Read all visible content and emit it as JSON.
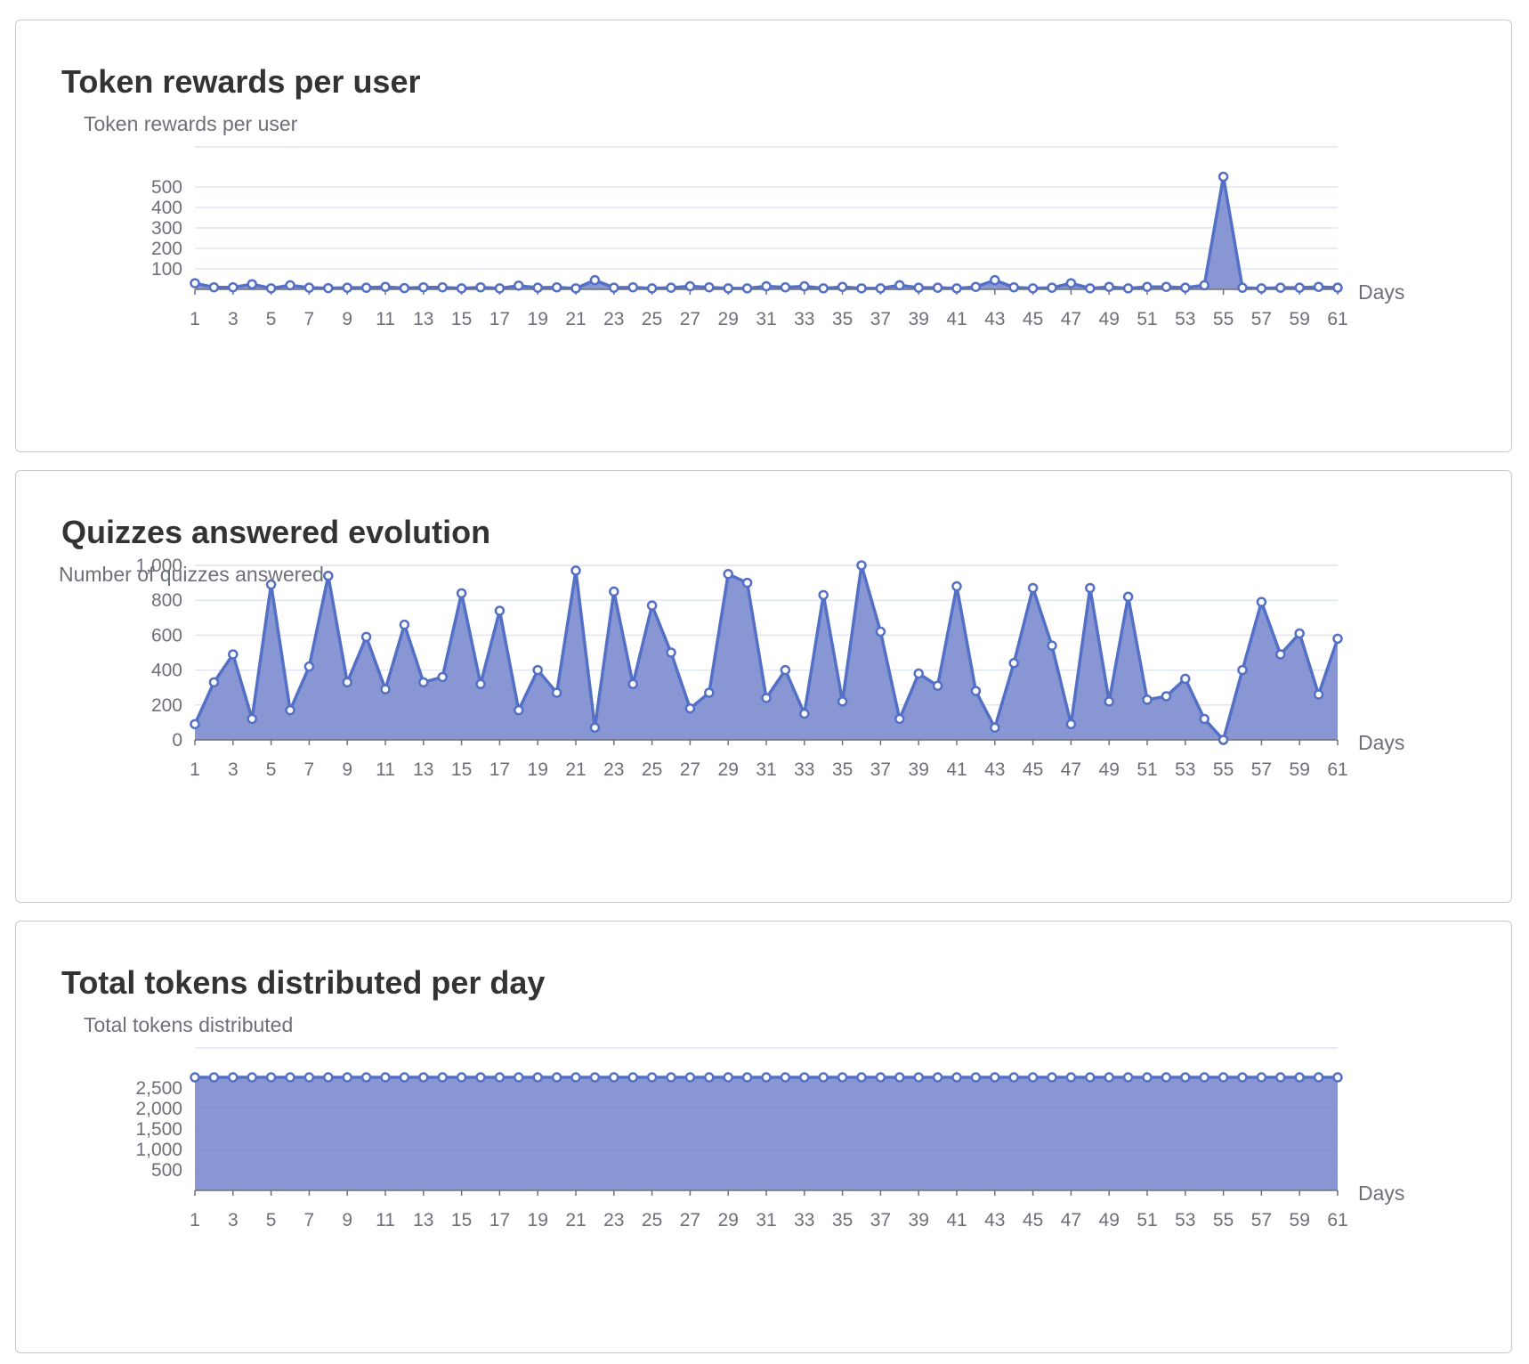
{
  "colors": {
    "line": "#5470c6",
    "area": "#7385cc",
    "grid": "#e0e6f1",
    "axis": "#6e7079",
    "title": "#333333"
  },
  "cards": [
    {
      "title": "Token rewards per user"
    },
    {
      "title": "Quizzes answered evolution"
    },
    {
      "title": "Total tokens distributed per day"
    }
  ],
  "chart_data": [
    {
      "type": "area",
      "ylabel": "Token rewards per user",
      "xlabel": "Days",
      "grid": true,
      "x": [
        1,
        2,
        3,
        4,
        5,
        6,
        7,
        8,
        9,
        10,
        11,
        12,
        13,
        14,
        15,
        16,
        17,
        18,
        19,
        20,
        21,
        22,
        23,
        24,
        25,
        26,
        27,
        28,
        29,
        30,
        31,
        32,
        33,
        34,
        35,
        36,
        37,
        38,
        39,
        40,
        41,
        42,
        43,
        44,
        45,
        46,
        47,
        48,
        49,
        50,
        51,
        52,
        53,
        54,
        55,
        56,
        57,
        58,
        59,
        60,
        61
      ],
      "x_tick_labels": [
        "1",
        "3",
        "5",
        "7",
        "9",
        "11",
        "13",
        "15",
        "17",
        "19",
        "21",
        "23",
        "25",
        "27",
        "29",
        "31",
        "33",
        "35",
        "37",
        "39",
        "41",
        "43",
        "45",
        "47",
        "49",
        "51",
        "53",
        "55",
        "57",
        "59",
        "61"
      ],
      "y_tick_labels": [
        "100",
        "200",
        "300",
        "400",
        "500"
      ],
      "ylim": [
        0,
        600
      ],
      "values": [
        30,
        10,
        10,
        25,
        5,
        20,
        8,
        6,
        8,
        8,
        12,
        6,
        10,
        10,
        5,
        10,
        5,
        18,
        8,
        10,
        5,
        45,
        8,
        10,
        5,
        8,
        15,
        10,
        5,
        5,
        15,
        10,
        15,
        5,
        12,
        5,
        5,
        20,
        8,
        8,
        5,
        12,
        45,
        10,
        5,
        8,
        30,
        5,
        12,
        5,
        12,
        12,
        8,
        20,
        550,
        8,
        5,
        8,
        8,
        12,
        8
      ]
    },
    {
      "type": "area",
      "ylabel": "Number of quizzes answered",
      "xlabel": "Days",
      "grid": true,
      "x": [
        1,
        2,
        3,
        4,
        5,
        6,
        7,
        8,
        9,
        10,
        11,
        12,
        13,
        14,
        15,
        16,
        17,
        18,
        19,
        20,
        21,
        22,
        23,
        24,
        25,
        26,
        27,
        28,
        29,
        30,
        31,
        32,
        33,
        34,
        35,
        36,
        37,
        38,
        39,
        40,
        41,
        42,
        43,
        44,
        45,
        46,
        47,
        48,
        49,
        50,
        51,
        52,
        53,
        54,
        55,
        56,
        57,
        58,
        59,
        60,
        61
      ],
      "x_tick_labels": [
        "1",
        "3",
        "5",
        "7",
        "9",
        "11",
        "13",
        "15",
        "17",
        "19",
        "21",
        "23",
        "25",
        "27",
        "29",
        "31",
        "33",
        "35",
        "37",
        "39",
        "41",
        "43",
        "45",
        "47",
        "49",
        "51",
        "53",
        "55",
        "57",
        "59",
        "61"
      ],
      "y_tick_labels": [
        "0",
        "200",
        "400",
        "600",
        "800",
        "1,000"
      ],
      "ylim": [
        0,
        1000
      ],
      "values": [
        90,
        330,
        490,
        120,
        890,
        170,
        420,
        940,
        330,
        590,
        290,
        660,
        330,
        360,
        840,
        320,
        740,
        170,
        400,
        270,
        970,
        70,
        850,
        320,
        770,
        500,
        180,
        270,
        950,
        900,
        240,
        400,
        150,
        830,
        220,
        1000,
        620,
        120,
        380,
        310,
        880,
        280,
        70,
        440,
        870,
        540,
        90,
        870,
        220,
        820,
        230,
        250,
        350,
        120,
        0,
        400,
        790,
        490,
        610,
        260,
        580
      ]
    },
    {
      "type": "area",
      "ylabel": "Total tokens distributed",
      "xlabel": "Days",
      "grid": true,
      "x": [
        1,
        2,
        3,
        4,
        5,
        6,
        7,
        8,
        9,
        10,
        11,
        12,
        13,
        14,
        15,
        16,
        17,
        18,
        19,
        20,
        21,
        22,
        23,
        24,
        25,
        26,
        27,
        28,
        29,
        30,
        31,
        32,
        33,
        34,
        35,
        36,
        37,
        38,
        39,
        40,
        41,
        42,
        43,
        44,
        45,
        46,
        47,
        48,
        49,
        50,
        51,
        52,
        53,
        54,
        55,
        56,
        57,
        58,
        59,
        60,
        61
      ],
      "x_tick_labels": [
        "1",
        "3",
        "5",
        "7",
        "9",
        "11",
        "13",
        "15",
        "17",
        "19",
        "21",
        "23",
        "25",
        "27",
        "29",
        "31",
        "33",
        "35",
        "37",
        "39",
        "41",
        "43",
        "45",
        "47",
        "49",
        "51",
        "53",
        "55",
        "57",
        "59",
        "61"
      ],
      "y_tick_labels": [
        "500",
        "1,000",
        "1,500",
        "2,000",
        "2,500"
      ],
      "ylim": [
        0,
        3000
      ],
      "values": [
        2760,
        2760,
        2760,
        2760,
        2760,
        2760,
        2760,
        2760,
        2760,
        2760,
        2760,
        2760,
        2760,
        2760,
        2760,
        2760,
        2760,
        2760,
        2760,
        2760,
        2760,
        2760,
        2760,
        2760,
        2760,
        2760,
        2760,
        2760,
        2760,
        2760,
        2760,
        2760,
        2760,
        2760,
        2760,
        2760,
        2760,
        2760,
        2760,
        2760,
        2760,
        2760,
        2760,
        2760,
        2760,
        2760,
        2760,
        2760,
        2760,
        2760,
        2760,
        2760,
        2760,
        2760,
        2760,
        2760,
        2760,
        2760,
        2760,
        2760,
        2760
      ]
    }
  ]
}
